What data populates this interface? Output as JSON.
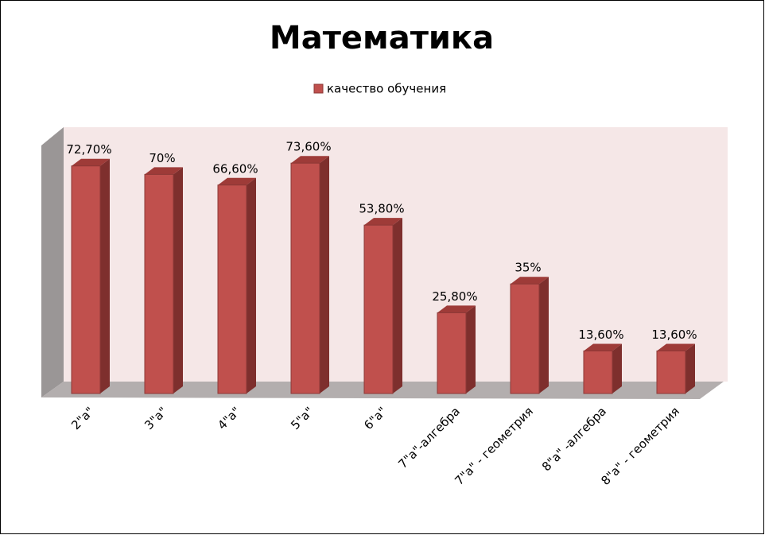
{
  "chart_data": {
    "type": "bar3d",
    "title": "Математика",
    "categories": [
      "2\"а\"",
      "3\"а\"",
      "4\"а\"",
      "5\"а\"",
      "6\"а\"",
      "7\"а\"-алгебра",
      "7\"а\" - геометрия",
      "8\"а\" -алгебра",
      "8\"а\" - геометрия"
    ],
    "series": [
      {
        "name": "качество обучения",
        "color": "#c0504d",
        "values": [
          72.7,
          70,
          66.6,
          73.6,
          53.8,
          25.8,
          35,
          13.6,
          13.6
        ],
        "value_labels": [
          "72,70%",
          "70%",
          "66,60%",
          "73,60%",
          "53,80%",
          "25,80%",
          "35%",
          "13,60%",
          "13,60%"
        ]
      }
    ],
    "ylim": [
      0,
      80
    ]
  }
}
